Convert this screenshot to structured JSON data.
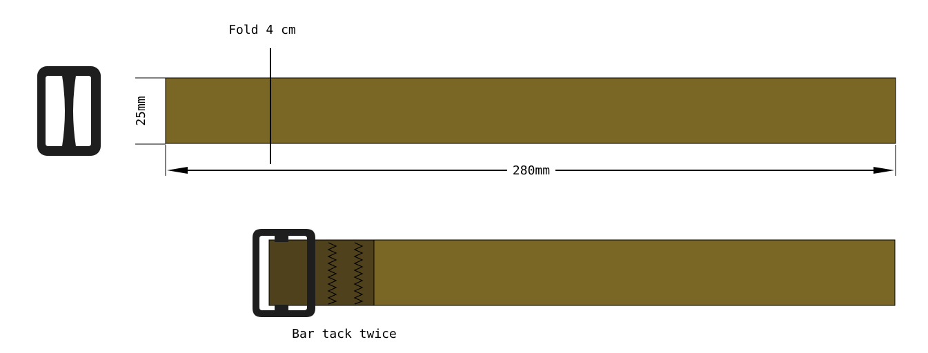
{
  "labels": {
    "fold": "Fold 4 cm",
    "width": "25mm",
    "length": "280mm",
    "bar_tack": "Bar tack twice"
  },
  "colors": {
    "strap": "#7a6726",
    "strap_dark": "#4f411b",
    "buckle": "#1e1e1e",
    "line": "#000000",
    "background": "#ffffff"
  }
}
